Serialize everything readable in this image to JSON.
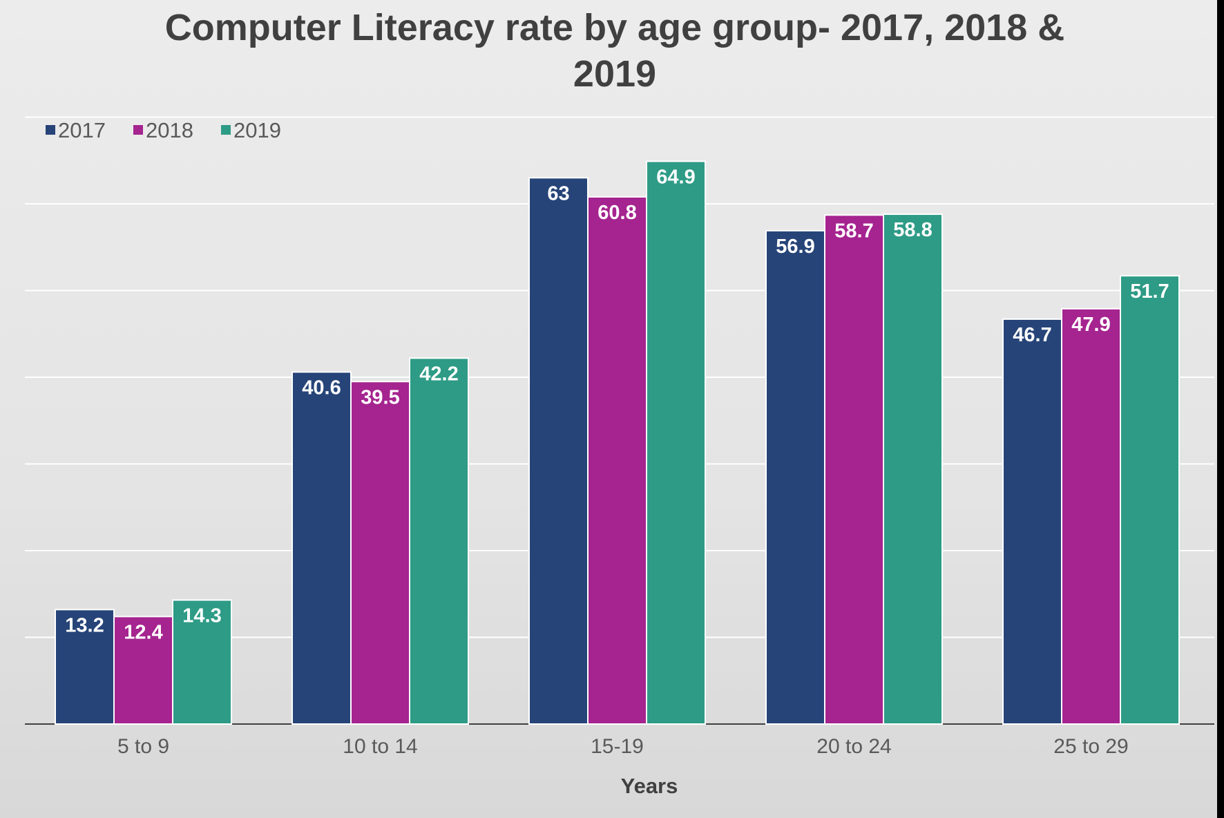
{
  "chart_data": {
    "type": "bar",
    "title": "Computer Literacy rate by age group- 2017, 2018 & 2019",
    "title_lines": [
      "Computer Literacy rate by age group- 2017, 2018 &",
      "2019"
    ],
    "xlabel": "Years",
    "ylabel": "",
    "categories": [
      "5 to 9",
      "10 to 14",
      "15-19",
      "20 to 24",
      "25 to 29"
    ],
    "series": [
      {
        "name": "2017",
        "color": "#264478",
        "values": [
          13.2,
          40.6,
          63,
          56.9,
          46.7
        ]
      },
      {
        "name": "2018",
        "color": "#A5248F",
        "values": [
          12.4,
          39.5,
          60.8,
          58.7,
          47.9
        ]
      },
      {
        "name": "2019",
        "color": "#2E9B86",
        "values": [
          14.3,
          42.2,
          64.9,
          58.8,
          51.7
        ]
      }
    ],
    "ylim": [
      0,
      70
    ],
    "grid": true,
    "legend_position": "top-left",
    "data_labels": true
  }
}
